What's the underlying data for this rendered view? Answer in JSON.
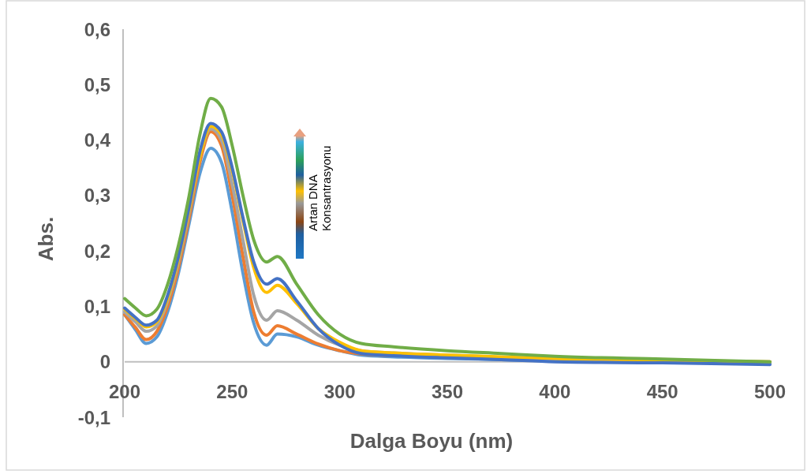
{
  "chart_data": {
    "type": "line",
    "xlabel": "Dalga Boyu (nm)",
    "ylabel": "Abs.",
    "x": [
      200,
      205,
      210,
      215,
      220,
      225,
      230,
      235,
      240,
      245,
      250,
      255,
      260,
      266,
      271,
      280,
      290,
      300,
      310,
      325,
      350,
      375,
      400,
      450,
      500
    ],
    "xlim": [
      200,
      500
    ],
    "xticks": [
      200,
      250,
      300,
      350,
      400,
      450,
      500
    ],
    "ylim": [
      -0.1,
      0.6
    ],
    "yticks": [
      {
        "value": -0.1,
        "label": "-0,1"
      },
      0,
      {
        "value": 0.1,
        "label": "0,1"
      },
      {
        "value": 0.2,
        "label": "0,2"
      },
      {
        "value": 0.3,
        "label": "0,3"
      },
      {
        "value": 0.4,
        "label": "0,4"
      },
      {
        "value": 0.5,
        "label": "0,5"
      },
      {
        "value": 0.6,
        "label": "0,6"
      }
    ],
    "grid": false,
    "marker": "none",
    "line_style": "solid",
    "annotations": [
      "Artan DNA\nKonsantrasyonu"
    ],
    "series": [
      {
        "color": "#5b9bd5",
        "values": [
          0.085,
          0.058,
          0.033,
          0.045,
          0.09,
          0.16,
          0.25,
          0.34,
          0.385,
          0.36,
          0.27,
          0.16,
          0.07,
          0.03,
          0.05,
          0.045,
          0.03,
          0.02,
          0.012,
          0.009,
          0.006,
          0.004,
          0.002,
          0,
          -0.003
        ]
      },
      {
        "color": "#ed7d31",
        "values": [
          0.085,
          0.062,
          0.04,
          0.055,
          0.1,
          0.17,
          0.26,
          0.36,
          0.415,
          0.39,
          0.3,
          0.19,
          0.09,
          0.048,
          0.065,
          0.05,
          0.032,
          0.02,
          0.014,
          0.011,
          null,
          null,
          null,
          null,
          null
        ]
      },
      {
        "color": "#a5a5a5",
        "values": [
          0.09,
          0.072,
          0.055,
          0.065,
          0.11,
          0.18,
          0.27,
          0.37,
          0.42,
          0.4,
          0.32,
          0.22,
          0.12,
          0.075,
          0.092,
          0.075,
          0.048,
          0.03,
          0.02,
          0.016,
          0.012,
          0.008,
          0.005,
          0.002,
          0
        ]
      },
      {
        "color": "#ffc000",
        "values": [
          0.095,
          0.078,
          0.063,
          0.072,
          0.115,
          0.185,
          0.275,
          0.37,
          0.425,
          0.41,
          0.345,
          0.255,
          0.17,
          0.125,
          0.138,
          0.105,
          0.06,
          0.035,
          0.02,
          0.016,
          0.012,
          0.009,
          0.006,
          0.003,
          0
        ]
      },
      {
        "color": "#4472c4",
        "values": [
          0.097,
          0.08,
          0.066,
          0.075,
          0.12,
          0.19,
          0.28,
          0.38,
          0.43,
          0.415,
          0.35,
          0.26,
          0.18,
          0.14,
          0.15,
          0.11,
          0.06,
          0.03,
          0.015,
          0.011,
          0.007,
          0.004,
          0,
          -0.002,
          -0.005
        ]
      },
      {
        "color": "#70ad47",
        "values": [
          0.114,
          0.097,
          0.083,
          0.095,
          0.14,
          0.21,
          0.3,
          0.41,
          0.475,
          0.46,
          0.39,
          0.3,
          0.22,
          0.18,
          0.19,
          0.14,
          0.085,
          0.05,
          0.033,
          0.027,
          0.02,
          0.015,
          0.01,
          0.005,
          0
        ]
      }
    ]
  }
}
